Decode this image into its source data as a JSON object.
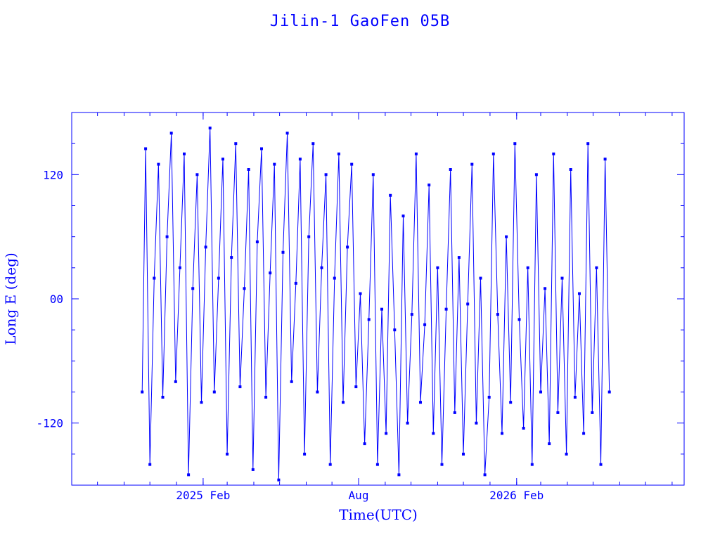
{
  "chart_data": {
    "type": "line",
    "title": "Jilin-1 GaoFen 05B",
    "xlabel": "Time(UTC)",
    "ylabel": "Long E (deg)",
    "xlim": [
      "2024-09-01",
      "2026-08-15"
    ],
    "ylim": [
      -180,
      180
    ],
    "x_ticks": [
      {
        "date": "2025-02-01",
        "label": "2025 Feb"
      },
      {
        "date": "2025-08-01",
        "label": "Aug"
      },
      {
        "date": "2026-02-01",
        "label": "2026 Feb"
      }
    ],
    "y_ticks": [
      {
        "value": 120,
        "label": "120"
      },
      {
        "value": 0,
        "label": "00"
      },
      {
        "value": -120,
        "label": "-120"
      }
    ],
    "series": [
      {
        "x": [
          "2024-11-22",
          "2024-11-26",
          "2024-12-01",
          "2024-12-06",
          "2024-12-11",
          "2024-12-16",
          "2024-12-21",
          "2024-12-26",
          "2024-12-31",
          "2025-01-05",
          "2025-01-10",
          "2025-01-15",
          "2025-01-20",
          "2025-01-25",
          "2025-01-30",
          "2025-02-04",
          "2025-02-09",
          "2025-02-14",
          "2025-02-19",
          "2025-02-24",
          "2025-03-01",
          "2025-03-06",
          "2025-03-11",
          "2025-03-16",
          "2025-03-21",
          "2025-03-26",
          "2025-03-31",
          "2025-04-05",
          "2025-04-10",
          "2025-04-15",
          "2025-04-20",
          "2025-04-25",
          "2025-04-30",
          "2025-05-05",
          "2025-05-10",
          "2025-05-15",
          "2025-05-20",
          "2025-05-25",
          "2025-05-30",
          "2025-06-04",
          "2025-06-09",
          "2025-06-14",
          "2025-06-19",
          "2025-06-24",
          "2025-06-29",
          "2025-07-04",
          "2025-07-09",
          "2025-07-14",
          "2025-07-19",
          "2025-07-24",
          "2025-07-29",
          "2025-08-03",
          "2025-08-08",
          "2025-08-13",
          "2025-08-18",
          "2025-08-23",
          "2025-08-28",
          "2025-09-02",
          "2025-09-07",
          "2025-09-12",
          "2025-09-17",
          "2025-09-22",
          "2025-09-27",
          "2025-10-02",
          "2025-10-07",
          "2025-10-12",
          "2025-10-17",
          "2025-10-22",
          "2025-10-27",
          "2025-11-01",
          "2025-11-06",
          "2025-11-11",
          "2025-11-16",
          "2025-11-21",
          "2025-11-26",
          "2025-12-01",
          "2025-12-06",
          "2025-12-11",
          "2025-12-16",
          "2025-12-21",
          "2025-12-26",
          "2025-12-31",
          "2026-01-05",
          "2026-01-10",
          "2026-01-15",
          "2026-01-20",
          "2026-01-25",
          "2026-01-30",
          "2026-02-04",
          "2026-02-09",
          "2026-02-14",
          "2026-02-19",
          "2026-02-24",
          "2026-03-01",
          "2026-03-06",
          "2026-03-11",
          "2026-03-16",
          "2026-03-21",
          "2026-03-26",
          "2026-03-31",
          "2026-04-05",
          "2026-04-10",
          "2026-04-15",
          "2026-04-20",
          "2026-04-25",
          "2026-04-30",
          "2026-05-05",
          "2026-05-10",
          "2026-05-15",
          "2026-05-20"
        ],
        "y": [
          -90,
          145,
          -160,
          20,
          130,
          -95,
          60,
          160,
          -80,
          30,
          140,
          -170,
          10,
          120,
          -100,
          50,
          165,
          -90,
          20,
          135,
          -150,
          40,
          150,
          -85,
          10,
          125,
          -165,
          55,
          145,
          -95,
          25,
          130,
          -175,
          45,
          160,
          -80,
          15,
          135,
          -150,
          60,
          150,
          -90,
          30,
          120,
          -160,
          20,
          140,
          -100,
          50,
          130,
          -85,
          5,
          -140,
          -20,
          120,
          -160,
          -10,
          -130,
          100,
          -30,
          -170,
          80,
          -120,
          -15,
          140,
          -100,
          -25,
          110,
          -130,
          30,
          -160,
          -10,
          125,
          -110,
          40,
          -150,
          -5,
          130,
          -120,
          20,
          -170,
          -95,
          140,
          -15,
          -130,
          60,
          -100,
          150,
          -20,
          -125,
          30,
          -160,
          120,
          -90,
          10,
          -140,
          140,
          -110,
          20,
          -150,
          125,
          -95,
          5,
          -130,
          150,
          -110,
          30,
          -160,
          135,
          -90
        ]
      }
    ]
  }
}
